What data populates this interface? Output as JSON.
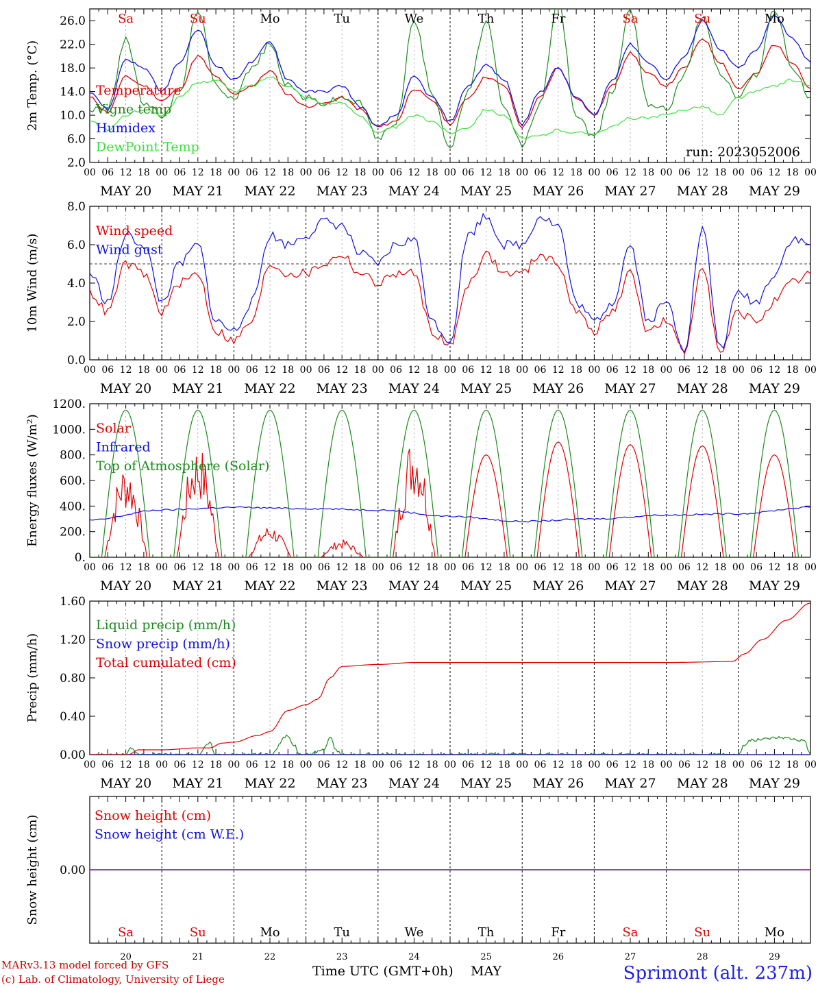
{
  "days": [
    "Sa",
    "Su",
    "Mo",
    "Tu",
    "We",
    "Th",
    "Fr",
    "Sa",
    "Su",
    "Mo"
  ],
  "day_colors": [
    "#e00000",
    "#e00000",
    "#000000",
    "#000000",
    "#000000",
    "#000000",
    "#000000",
    "#e00000",
    "#e00000",
    "#000000"
  ],
  "dates": [
    "MAY 20",
    "MAY 21",
    "MAY 22",
    "MAY 23",
    "MAY 24",
    "MAY 25",
    "MAY 26",
    "MAY 27",
    "MAY 28",
    "MAY 29"
  ],
  "day_numbers": [
    "20",
    "21",
    "22",
    "23",
    "24",
    "25",
    "26",
    "27",
    "28",
    "29"
  ],
  "hour_labels": [
    "00",
    "06",
    "12",
    "18"
  ],
  "final_hour_label": "00",
  "run_label": "run: 2023052006",
  "bottom_axis_label": "Time UTC (GMT+0h)",
  "bottom_month": "MAY",
  "footer_line1": "MARv3.13 model forced by GFS",
  "footer_line2": "(c) Lab. of Climatology, University of Liege",
  "station": "Sprimont (alt. 237m)",
  "chart_data": [
    {
      "type": "line",
      "ylabel": "2m Temp. (°C)",
      "ylim": [
        2,
        28
      ],
      "yticks": [
        2,
        6,
        10,
        14,
        18,
        22,
        26
      ],
      "ytick_labels": [
        "2.0",
        "6.0",
        "10.0",
        "14.0",
        "18.0",
        "22.0",
        "26.0"
      ],
      "x_unit": "hours since 2023-05-20 00 UTC",
      "series": [
        {
          "name": "Temperature",
          "color": "#e00000",
          "x": [
            0,
            6,
            12,
            18,
            24,
            30,
            36,
            42,
            48,
            54,
            60,
            66,
            72,
            78,
            84,
            90,
            96,
            102,
            108,
            114,
            120,
            126,
            132,
            138,
            144,
            150,
            156,
            162,
            168,
            174,
            180,
            186,
            192,
            198,
            204,
            210,
            216,
            222,
            228,
            234,
            240
          ],
          "y": [
            13,
            10.5,
            16.5,
            15,
            12.5,
            14.5,
            20,
            16.5,
            13.5,
            15,
            17.5,
            13.5,
            11.5,
            12,
            13,
            11,
            8,
            9,
            14.5,
            12.5,
            8.5,
            13,
            16.5,
            15,
            8,
            13,
            18,
            13,
            10,
            15,
            20.5,
            17,
            15,
            18,
            23,
            19,
            14.5,
            17,
            22,
            19,
            14.5
          ]
        },
        {
          "name": "Vigne temp",
          "color": "#1c8a1c",
          "x": [
            0,
            6,
            12,
            18,
            24,
            30,
            36,
            42,
            48,
            54,
            60,
            66,
            72,
            78,
            84,
            90,
            96,
            102,
            108,
            114,
            120,
            126,
            132,
            138,
            144,
            150,
            156,
            162,
            168,
            174,
            180,
            186,
            192,
            198,
            204,
            210,
            216,
            222,
            228,
            234,
            240
          ],
          "y": [
            11,
            11,
            23,
            12,
            10,
            14,
            28,
            15,
            13,
            18,
            22,
            15,
            13,
            12,
            13,
            12,
            6,
            9,
            26,
            14,
            4.5,
            14,
            26,
            11,
            5,
            12,
            29,
            10,
            6,
            14,
            28,
            12,
            11,
            17,
            27,
            17,
            13,
            17,
            28,
            18,
            13
          ]
        },
        {
          "name": "Humidex",
          "color": "#1010e0",
          "x": [
            0,
            6,
            12,
            18,
            24,
            30,
            36,
            42,
            48,
            54,
            60,
            66,
            72,
            78,
            84,
            90,
            96,
            102,
            108,
            114,
            120,
            126,
            132,
            138,
            144,
            150,
            156,
            162,
            168,
            174,
            180,
            186,
            192,
            198,
            204,
            210,
            216,
            222,
            228,
            234,
            240
          ],
          "y": [
            14,
            11,
            19.5,
            18,
            14,
            19,
            24.5,
            18.5,
            16,
            19,
            22.5,
            16,
            14,
            14,
            15,
            11.5,
            8,
            10,
            16.5,
            13,
            9,
            15,
            18.5,
            16,
            8.5,
            14,
            18,
            13,
            10,
            16,
            22,
            19,
            16,
            20,
            26,
            21,
            18,
            21,
            27,
            23,
            19
          ]
        },
        {
          "name": "DewPoint Temp",
          "color": "#3ce03c",
          "x": [
            0,
            6,
            12,
            18,
            24,
            30,
            36,
            42,
            48,
            54,
            60,
            66,
            72,
            78,
            84,
            90,
            96,
            102,
            108,
            114,
            120,
            126,
            132,
            138,
            144,
            150,
            156,
            162,
            168,
            174,
            180,
            186,
            192,
            198,
            204,
            210,
            216,
            222,
            228,
            234,
            240
          ],
          "y": [
            9,
            7.5,
            10,
            11,
            10,
            13,
            15.5,
            16,
            14,
            15,
            16.5,
            15,
            13,
            12,
            12,
            10,
            7,
            8,
            10,
            9,
            7,
            8,
            11,
            10,
            6,
            6.5,
            7.5,
            7,
            7,
            8,
            9.5,
            9.5,
            10,
            11,
            11.5,
            10,
            13,
            14,
            15,
            16,
            15
          ]
        }
      ]
    },
    {
      "type": "line",
      "ylabel": "10m Wind (m/s)",
      "ylim": [
        0,
        8
      ],
      "yticks": [
        0,
        2,
        4,
        6,
        8
      ],
      "ytick_labels": [
        "0.0",
        "2.0",
        "4.0",
        "6.0",
        "8.0"
      ],
      "reference_line": 5,
      "series": [
        {
          "name": "Wind speed",
          "color": "#e00000",
          "x": [
            0,
            6,
            12,
            18,
            24,
            30,
            36,
            42,
            48,
            54,
            60,
            66,
            72,
            78,
            84,
            90,
            96,
            102,
            108,
            114,
            120,
            126,
            132,
            138,
            144,
            150,
            156,
            162,
            168,
            174,
            180,
            186,
            192,
            198,
            204,
            210,
            216,
            222,
            228,
            234,
            240
          ],
          "y": [
            3.5,
            2.5,
            5,
            4.5,
            2.5,
            4,
            4.5,
            1.5,
            1,
            2,
            5,
            4.5,
            4.5,
            5,
            5.5,
            4.5,
            4,
            4.5,
            4.5,
            1.5,
            0.7,
            4,
            5.5,
            4.5,
            4.5,
            5.5,
            5,
            2.5,
            1.5,
            2.5,
            4.5,
            1.5,
            2,
            0.4,
            5,
            0.3,
            2.5,
            2,
            3,
            4,
            4.5
          ]
        },
        {
          "name": "Wind gust",
          "color": "#1010e0",
          "x": [
            0,
            6,
            12,
            18,
            24,
            30,
            36,
            42,
            48,
            54,
            60,
            66,
            72,
            78,
            84,
            90,
            96,
            102,
            108,
            114,
            120,
            126,
            132,
            138,
            144,
            150,
            156,
            162,
            168,
            174,
            180,
            186,
            192,
            198,
            204,
            210,
            216,
            222,
            228,
            234,
            240
          ],
          "y": [
            4.5,
            3,
            6.5,
            6,
            3,
            5,
            6,
            2,
            1.5,
            3,
            6.5,
            6,
            6.5,
            7.2,
            7,
            5.5,
            5,
            6,
            6.3,
            2,
            1,
            6.5,
            7.5,
            6,
            6,
            7.5,
            7,
            3,
            2,
            3,
            6,
            2,
            3,
            0.6,
            6.8,
            0.6,
            3.5,
            3,
            4.5,
            6.3,
            6
          ]
        }
      ]
    },
    {
      "type": "line",
      "ylabel": "Energy fluxes (W/m²)",
      "ylim": [
        0,
        1200
      ],
      "yticks": [
        0,
        200,
        400,
        600,
        800,
        1000,
        1200
      ],
      "ytick_labels": [
        "0.",
        "200.",
        "400.",
        "600.",
        "800.",
        "1000.",
        "1200."
      ],
      "series": [
        {
          "name": "Solar",
          "color": "#e00000",
          "solar_peaks": [
            650,
            780,
            220,
            120,
            850,
            800,
            900,
            880,
            870,
            800
          ],
          "solar_peak_hour": 12
        },
        {
          "name": "Infrared",
          "color": "#1010e0",
          "x": [
            0,
            24,
            48,
            72,
            96,
            120,
            144,
            168,
            192,
            216,
            240
          ],
          "y": [
            290,
            370,
            390,
            380,
            370,
            320,
            280,
            300,
            330,
            340,
            390
          ]
        },
        {
          "name": "Top of Atmosphere (Solar)",
          "color": "#1c8a1c",
          "toa_peak": 1150,
          "sunrise_hour": 4,
          "sunset_hour": 20
        }
      ]
    },
    {
      "type": "line",
      "ylabel": "Precip (mm/h)",
      "ylim": [
        0,
        1.6
      ],
      "yticks": [
        0,
        0.4,
        0.8,
        1.2,
        1.6
      ],
      "ytick_labels": [
        "0.00",
        "0.40",
        "0.80",
        "1.20",
        "1.60"
      ],
      "series": [
        {
          "name": "Liquid precip (mm/h)",
          "color": "#1c8a1c",
          "x": [
            0,
            12,
            14,
            16,
            20,
            24,
            36,
            40,
            42,
            44,
            48,
            60,
            66,
            68,
            70,
            72,
            78,
            80,
            82,
            84,
            96,
            216,
            218,
            220,
            230,
            238,
            240
          ],
          "y": [
            0,
            0,
            0.07,
            0,
            0,
            0,
            0,
            0.12,
            0,
            0,
            0,
            0,
            0.2,
            0.1,
            0,
            0,
            0.05,
            0.18,
            0.05,
            0,
            0,
            0,
            0.1,
            0.15,
            0.18,
            0.15,
            0
          ]
        },
        {
          "name": "Snow precip (mm/h)",
          "color": "#1010e0",
          "x": [
            0,
            240
          ],
          "y": [
            0,
            0
          ]
        },
        {
          "name": "Total cumulated (cm)",
          "color": "#e00000",
          "x": [
            0,
            13,
            16,
            24,
            36,
            40,
            44,
            48,
            56,
            60,
            66,
            72,
            76,
            80,
            84,
            96,
            108,
            120,
            144,
            168,
            192,
            214,
            218,
            224,
            232,
            240
          ],
          "y": [
            0,
            0,
            0.05,
            0.05,
            0.07,
            0.07,
            0.12,
            0.13,
            0.2,
            0.24,
            0.46,
            0.52,
            0.58,
            0.8,
            0.92,
            0.94,
            0.96,
            0.96,
            0.96,
            0.96,
            0.96,
            0.97,
            1.05,
            1.2,
            1.4,
            1.58
          ]
        }
      ]
    },
    {
      "type": "line",
      "ylabel": "Snow height (cm)",
      "ytick_labels": [
        "0.00"
      ],
      "series": [
        {
          "name": "Snow height (cm)",
          "color": "#e00000",
          "x": [
            0,
            240
          ],
          "y": [
            0,
            0
          ]
        },
        {
          "name": "Snow height (cm W.E.)",
          "color": "#1010e0",
          "x": [
            0,
            240
          ],
          "y": [
            0,
            0
          ]
        }
      ]
    }
  ]
}
